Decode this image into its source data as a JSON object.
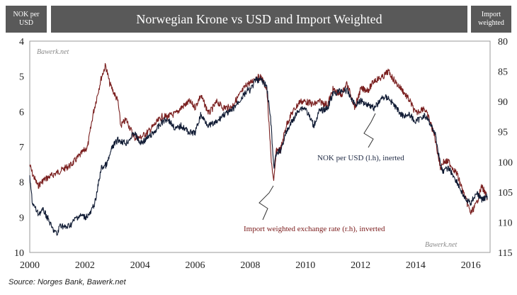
{
  "header": {
    "left_label": "NOK per USD",
    "title": "Norwegian Krone vs USD and Import Weighted",
    "right_label": "Import weighted"
  },
  "watermarks": [
    "Bawerk.net",
    "Bawerk.net"
  ],
  "source": "Source: Norges Bank, Bawerk.net",
  "chart_data": {
    "type": "line",
    "title": "Norwegian Krone vs USD and Import Weighted",
    "x_ticks": [
      "2000",
      "2002",
      "2004",
      "2006",
      "2008",
      "2010",
      "2012",
      "2014",
      "2016"
    ],
    "xlim": [
      2000.0,
      2016.7
    ],
    "y_left": {
      "label": "NOK per USD",
      "ticks": [
        4,
        5,
        6,
        7,
        8,
        9,
        10
      ],
      "lim": [
        4,
        10
      ],
      "inverted": true
    },
    "y_right": {
      "label": "Import weighted",
      "ticks": [
        80,
        85,
        90,
        95,
        100,
        105,
        110,
        115
      ],
      "lim": [
        80,
        115
      ],
      "inverted": true
    },
    "grid": false,
    "annotations": [
      {
        "text": "NOK per USD (l.h), inerted",
        "color": "#1f2a44"
      },
      {
        "text": "Import weighted exchange rate (r.h), inverted",
        "color": "#7a1a1a"
      }
    ],
    "series": [
      {
        "name": "NOK per USD (l.h), inerted",
        "axis": "left",
        "color": "#0f1a33",
        "x": [
          2000.0,
          2000.1,
          2000.3,
          2000.5,
          2000.7,
          2000.8,
          2001.0,
          2001.1,
          2001.3,
          2001.5,
          2001.7,
          2001.9,
          2002.0,
          2002.2,
          2002.4,
          2002.5,
          2002.6,
          2002.8,
          2003.0,
          2003.2,
          2003.5,
          2003.8,
          2004.0,
          2004.2,
          2004.5,
          2004.8,
          2005.0,
          2005.3,
          2005.5,
          2005.8,
          2006.0,
          2006.2,
          2006.5,
          2006.8,
          2007.0,
          2007.3,
          2007.6,
          2007.9,
          2008.0,
          2008.2,
          2008.4,
          2008.6,
          2008.75,
          2008.85,
          2008.95,
          2009.1,
          2009.3,
          2009.5,
          2009.8,
          2010.0,
          2010.3,
          2010.5,
          2010.8,
          2011.0,
          2011.3,
          2011.5,
          2011.8,
          2012.0,
          2012.3,
          2012.5,
          2012.8,
          2013.0,
          2013.3,
          2013.5,
          2013.8,
          2014.0,
          2014.3,
          2014.5,
          2014.7,
          2014.9,
          2015.0,
          2015.2,
          2015.5,
          2015.8,
          2016.0,
          2016.2,
          2016.4,
          2016.6
        ],
        "values": [
          7.9,
          8.6,
          8.9,
          8.8,
          9.1,
          9.3,
          9.5,
          9.2,
          9.3,
          9.2,
          9.0,
          8.95,
          9.0,
          8.9,
          8.5,
          8.0,
          7.6,
          7.5,
          7.0,
          6.8,
          6.9,
          6.6,
          6.9,
          6.8,
          6.6,
          6.3,
          6.2,
          6.5,
          6.4,
          6.6,
          6.6,
          6.1,
          6.4,
          6.3,
          6.1,
          6.0,
          5.7,
          5.4,
          5.4,
          5.1,
          5.1,
          5.3,
          6.3,
          7.6,
          7.2,
          7.1,
          6.6,
          6.3,
          5.9,
          5.9,
          6.4,
          6.0,
          5.9,
          5.5,
          5.4,
          5.4,
          5.8,
          5.7,
          5.8,
          5.9,
          5.6,
          5.6,
          5.9,
          6.1,
          6.1,
          6.3,
          6.1,
          6.3,
          6.6,
          7.5,
          7.7,
          7.6,
          8.0,
          8.5,
          8.6,
          8.3,
          8.5,
          8.4
        ]
      },
      {
        "name": "Import weighted exchange rate (r.h), inverted",
        "axis": "right",
        "color": "#7a1f1f",
        "x": [
          2000.0,
          2000.1,
          2000.3,
          2000.5,
          2000.7,
          2000.9,
          2001.1,
          2001.3,
          2001.5,
          2001.7,
          2001.9,
          2002.1,
          2002.3,
          2002.45,
          2002.6,
          2002.75,
          2002.9,
          2003.05,
          2003.2,
          2003.3,
          2003.5,
          2003.8,
          2004.0,
          2004.3,
          2004.5,
          2004.8,
          2005.0,
          2005.3,
          2005.5,
          2005.8,
          2006.0,
          2006.2,
          2006.5,
          2006.8,
          2007.0,
          2007.3,
          2007.6,
          2007.9,
          2008.0,
          2008.2,
          2008.4,
          2008.6,
          2008.75,
          2008.85,
          2008.95,
          2009.1,
          2009.3,
          2009.5,
          2009.8,
          2010.0,
          2010.3,
          2010.5,
          2010.8,
          2011.0,
          2011.3,
          2011.5,
          2011.8,
          2012.0,
          2012.3,
          2012.5,
          2012.8,
          2013.0,
          2013.3,
          2013.5,
          2013.8,
          2014.0,
          2014.3,
          2014.5,
          2014.7,
          2014.9,
          2015.0,
          2015.2,
          2015.5,
          2015.8,
          2016.0,
          2016.2,
          2016.4,
          2016.6
        ],
        "values": [
          100.5,
          102.0,
          104.0,
          103.0,
          102.5,
          102.0,
          101.5,
          101.0,
          100.5,
          99.5,
          98.5,
          97.5,
          92.0,
          89.0,
          86.0,
          84.0,
          87.0,
          88.5,
          90.0,
          94.0,
          93.0,
          96.0,
          96.0,
          95.0,
          94.0,
          92.5,
          92.5,
          92.0,
          91.0,
          90.0,
          91.0,
          89.0,
          92.0,
          90.0,
          91.0,
          91.0,
          89.0,
          87.0,
          87.0,
          86.0,
          86.0,
          88.0,
          99.0,
          103.5,
          98.0,
          98.0,
          94.0,
          92.0,
          90.0,
          90.0,
          90.5,
          90.0,
          90.5,
          88.0,
          89.0,
          87.0,
          91.0,
          88.0,
          88.0,
          86.5,
          86.0,
          85.0,
          87.0,
          88.0,
          90.0,
          92.0,
          91.0,
          93.0,
          96.0,
          101.0,
          100.0,
          100.0,
          102.0,
          106.0,
          108.5,
          107.0,
          104.0,
          106.0
        ]
      }
    ]
  }
}
